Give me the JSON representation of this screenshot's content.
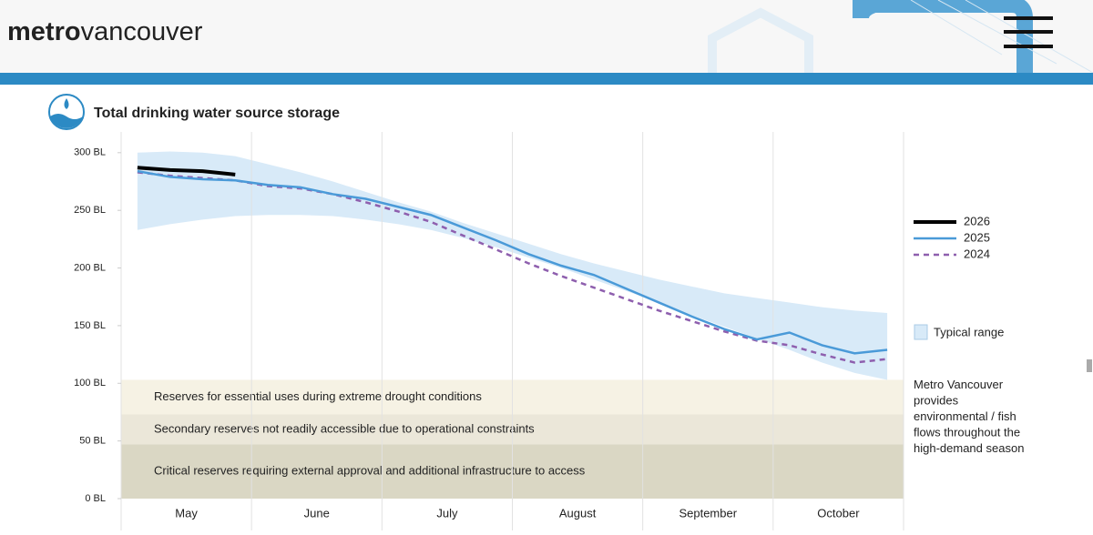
{
  "header": {
    "logo_bold": "metro",
    "logo_light": "vancouver"
  },
  "chart_data": {
    "type": "line",
    "title": "Total drinking water source storage",
    "categories": [
      null,
      null,
      "May",
      null,
      null,
      null,
      "June",
      null,
      null,
      null,
      "July",
      null,
      null,
      null,
      "August",
      null,
      null,
      null,
      "September",
      null,
      null,
      null,
      "October",
      null
    ],
    "ylim": [
      0,
      318
    ],
    "yticks": [
      {
        "value": 0,
        "label": "0 BL"
      },
      {
        "value": 50,
        "label": "50 BL"
      },
      {
        "value": 100,
        "label": "100 BL"
      },
      {
        "value": 150,
        "label": "150 BL"
      },
      {
        "value": 200,
        "label": "200 BL"
      },
      {
        "value": 250,
        "label": "250 BL"
      },
      {
        "value": 300,
        "label": "300 BL"
      }
    ],
    "legend": "right",
    "band": {
      "name": "Typical range",
      "color": "#d8eaf8",
      "low": [
        233,
        238,
        242,
        245,
        246,
        246,
        245,
        242,
        238,
        233,
        226,
        218,
        209,
        200,
        190,
        180,
        170,
        159,
        149,
        139,
        129,
        118,
        109,
        103
      ],
      "high": [
        300,
        301,
        300,
        297,
        290,
        283,
        275,
        266,
        257,
        249,
        239,
        230,
        221,
        212,
        204,
        197,
        190,
        184,
        178,
        174,
        170,
        166,
        163,
        161
      ]
    },
    "series": [
      {
        "name": "2026",
        "color": "#000000",
        "dash": false,
        "values": [
          287,
          285,
          284,
          281,
          null,
          null,
          null,
          null,
          null,
          null,
          null,
          null,
          null,
          null,
          null,
          null,
          null,
          null,
          null,
          null,
          null,
          null,
          null,
          null
        ]
      },
      {
        "name": "2025",
        "color": "#4a9ad8",
        "dash": false,
        "values": [
          284,
          279,
          277,
          276,
          272,
          270,
          264,
          260,
          253,
          246,
          235,
          224,
          212,
          202,
          194,
          182,
          170,
          158,
          147,
          138,
          144,
          133,
          126,
          129
        ]
      },
      {
        "name": "2024",
        "color": "#8e5fae",
        "dash": true,
        "values": [
          283,
          280,
          278,
          276,
          271,
          269,
          264,
          257,
          249,
          240,
          228,
          216,
          204,
          193,
          183,
          173,
          163,
          154,
          145,
          137,
          133,
          125,
          118,
          121
        ]
      }
    ],
    "zones": [
      {
        "label": "Reserves for essential uses during extreme drought conditions",
        "from": 73,
        "to": 103,
        "color": "#f6f2e4"
      },
      {
        "label": "Secondary reserves not readily accessible due to operational constraints",
        "from": 47,
        "to": 73,
        "color": "#ebe7d9"
      },
      {
        "label": "Critical reserves requiring external approval and additional infrastructure to access",
        "from": 0,
        "to": 47,
        "color": "#dad7c4"
      }
    ],
    "note": "Metro Vancouver provides environmental / fish flows throughout the high-demand season"
  }
}
